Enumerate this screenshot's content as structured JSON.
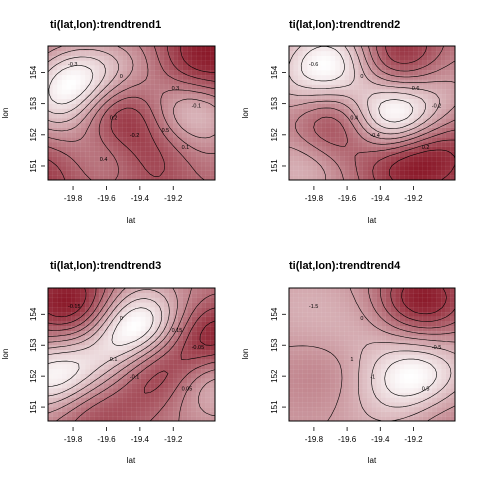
{
  "chart_data": [
    {
      "type": "heatmap",
      "title": "ti(lat,lon):trendtrend1",
      "xlabel": "lat",
      "ylabel": "lon",
      "xticks": [
        "-19.8",
        "-19.6",
        "-19.4",
        "-19.2"
      ],
      "yticks": [
        "151",
        "152",
        "153",
        "154"
      ],
      "xlim": [
        -19.95,
        -18.95
      ],
      "ylim": [
        150.55,
        154.85
      ],
      "contour_labels": [
        "-0.3",
        "-0.2",
        "-0.1",
        "0",
        "0.1",
        "0.2",
        "0.3",
        "0.4",
        "0.5"
      ],
      "color_scale": [
        "#8b1a2a",
        "#ffffff"
      ],
      "features": [
        {
          "x": -19.75,
          "y": 153.7,
          "v": 0.6
        },
        {
          "x": -19.6,
          "y": 152.8,
          "v": -0.45
        },
        {
          "x": -19.1,
          "y": 152.7,
          "v": 0.45
        },
        {
          "x": -19.88,
          "y": 152.7,
          "v": 0.35
        },
        {
          "x": -19.65,
          "y": 151.4,
          "v": 0.3
        },
        {
          "x": -19.3,
          "y": 151.6,
          "v": -0.2
        },
        {
          "x": -19.05,
          "y": 154.3,
          "v": -0.3
        },
        {
          "x": -19.9,
          "y": 151.2,
          "v": -0.2
        },
        {
          "x": -19.4,
          "y": 154.3,
          "v": 0.2
        },
        {
          "x": -19.0,
          "y": 151.0,
          "v": 0.1
        }
      ]
    },
    {
      "type": "heatmap",
      "title": "ti(lat,lon):trendtrend2",
      "xlabel": "lat",
      "ylabel": "lon",
      "xticks": [
        "-19.8",
        "-19.6",
        "-19.4",
        "-19.2"
      ],
      "yticks": [
        "151",
        "152",
        "153",
        "154"
      ],
      "xlim": [
        -19.95,
        -18.95
      ],
      "ylim": [
        150.55,
        154.85
      ],
      "contour_labels": [
        "-0.6",
        "-0.4",
        "-0.2",
        "0",
        "0.2",
        "0.4",
        "0.6"
      ],
      "color_scale": [
        "#8b1a2a",
        "#ffffff"
      ],
      "features": [
        {
          "x": -19.35,
          "y": 152.55,
          "v": 0.85
        },
        {
          "x": -19.68,
          "y": 154.3,
          "v": 0.6
        },
        {
          "x": -19.65,
          "y": 152.4,
          "v": -0.55
        },
        {
          "x": -19.3,
          "y": 154.4,
          "v": -0.5
        },
        {
          "x": -19.25,
          "y": 151.2,
          "v": -0.45
        },
        {
          "x": -19.85,
          "y": 151.1,
          "v": 0.3
        },
        {
          "x": -19.9,
          "y": 153.3,
          "v": 0.2
        },
        {
          "x": -19.05,
          "y": 153.7,
          "v": 0.2
        },
        {
          "x": -19.0,
          "y": 151.5,
          "v": -0.2
        }
      ]
    },
    {
      "type": "heatmap",
      "title": "ti(lat,lon):trendtrend3",
      "xlabel": "lat",
      "ylabel": "lon",
      "xticks": [
        "-19.8",
        "-19.6",
        "-19.4",
        "-19.2"
      ],
      "yticks": [
        "151",
        "152",
        "153",
        "154"
      ],
      "xlim": [
        -19.95,
        -18.95
      ],
      "ylim": [
        150.55,
        154.85
      ],
      "contour_labels": [
        "-0.15",
        "-0.1",
        "-0.05",
        "0",
        "0.05",
        "0.1",
        "0.15"
      ],
      "color_scale": [
        "#8b1a2a",
        "#ffffff"
      ],
      "features": [
        {
          "x": -19.4,
          "y": 153.6,
          "v": 0.25
        },
        {
          "x": -19.9,
          "y": 151.9,
          "v": 0.2
        },
        {
          "x": -19.3,
          "y": 152.3,
          "v": -0.2
        },
        {
          "x": -19.8,
          "y": 154.3,
          "v": -0.18
        },
        {
          "x": -18.98,
          "y": 153.2,
          "v": -0.18
        },
        {
          "x": -19.7,
          "y": 151.0,
          "v": -0.12
        },
        {
          "x": -19.0,
          "y": 152.0,
          "v": 0.15
        },
        {
          "x": -19.55,
          "y": 152.5,
          "v": 0.1
        }
      ]
    },
    {
      "type": "heatmap",
      "title": "ti(lat,lon):trendtrend4",
      "xlabel": "lat",
      "ylabel": "lon",
      "xticks": [
        "-19.8",
        "-19.6",
        "-19.4",
        "-19.2"
      ],
      "yticks": [
        "151",
        "152",
        "153",
        "154"
      ],
      "xlim": [
        -19.95,
        -18.95
      ],
      "ylim": [
        150.55,
        154.85
      ],
      "contour_labels": [
        "-1.5",
        "-1",
        "-0.5",
        "0",
        "0.5",
        "1"
      ],
      "color_scale": [
        "#8b1a2a",
        "#ffffff"
      ],
      "features": [
        {
          "x": -19.18,
          "y": 151.9,
          "v": 1.4
        },
        {
          "x": -19.15,
          "y": 154.5,
          "v": -1.6
        },
        {
          "x": -19.75,
          "y": 152.0,
          "v": -0.3
        },
        {
          "x": -19.5,
          "y": 153.7,
          "v": 0.3
        },
        {
          "x": -19.05,
          "y": 150.9,
          "v": -0.6
        },
        {
          "x": -19.9,
          "y": 154.2,
          "v": 0.2
        },
        {
          "x": -19.4,
          "y": 151.0,
          "v": 0.2
        }
      ]
    }
  ]
}
